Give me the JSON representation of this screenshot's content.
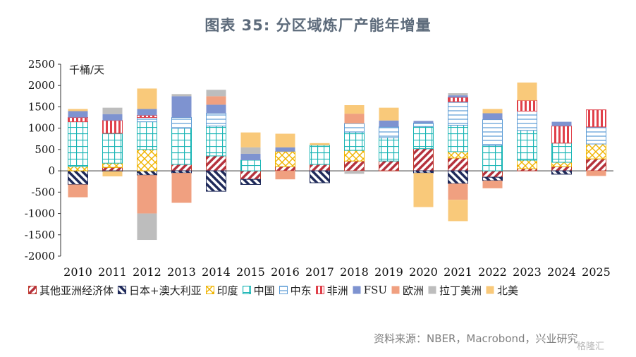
{
  "title": "图表 35: 分区域炼厂产能年增量",
  "source": "资料来源：NBER，Macrobond，兴业研究",
  "watermark": "格隆汇",
  "chart_data": {
    "type": "bar",
    "stacked": true,
    "unit": "千桶/天",
    "categories": [
      "2010",
      "2011",
      "2012",
      "2013",
      "2014",
      "2015",
      "2016",
      "2017",
      "2018",
      "2019",
      "2020",
      "2021",
      "2022",
      "2023",
      "2024",
      "2025"
    ],
    "ylim": [
      -2000,
      2500
    ],
    "yticks": [
      -2000,
      -1500,
      -1000,
      -500,
      0,
      500,
      1000,
      1500,
      2000,
      2500
    ],
    "grid": false,
    "legend_position": "bottom",
    "series": [
      {
        "name": "其他亚洲经济体",
        "color": "#c0392b",
        "pattern": "diag-red",
        "values": [
          0,
          80,
          0,
          150,
          350,
          -200,
          100,
          150,
          230,
          230,
          520,
          300,
          -150,
          50,
          100,
          280
        ]
      },
      {
        "name": "日本+澳大利亚",
        "color": "#1f2a5a",
        "pattern": "diag-navy",
        "values": [
          -320,
          -10,
          -100,
          -50,
          -480,
          -120,
          0,
          -280,
          0,
          0,
          -50,
          -300,
          -80,
          0,
          -80,
          0
        ]
      },
      {
        "name": "印度",
        "color": "#f0b400",
        "pattern": "cross-yellow",
        "values": [
          100,
          100,
          500,
          0,
          0,
          0,
          350,
          0,
          250,
          0,
          0,
          150,
          0,
          200,
          100,
          350
        ]
      },
      {
        "name": "中国",
        "color": "#19b5b5",
        "pattern": "grid-teal",
        "values": [
          1050,
          700,
          650,
          850,
          700,
          250,
          0,
          450,
          430,
          550,
          520,
          620,
          600,
          700,
          450,
          0
        ]
      },
      {
        "name": "中东",
        "color": "#5b9bd5",
        "pattern": "hlines-blue",
        "values": [
          0,
          0,
          100,
          250,
          300,
          0,
          0,
          0,
          200,
          250,
          80,
          550,
          600,
          450,
          0,
          400
        ]
      },
      {
        "name": "非洲",
        "color": "#e0404a",
        "pattern": "vlines-red",
        "values": [
          100,
          300,
          50,
          0,
          0,
          0,
          0,
          0,
          0,
          0,
          0,
          100,
          0,
          250,
          400,
          400
        ]
      },
      {
        "name": "FSU",
        "color": "#7e93d0",
        "pattern": "solid",
        "values": [
          150,
          150,
          150,
          500,
          200,
          150,
          100,
          0,
          0,
          150,
          50,
          50,
          150,
          0,
          100,
          0
        ]
      },
      {
        "name": "欧洲",
        "color": "#f0a080",
        "pattern": "solid",
        "values": [
          -300,
          0,
          -900,
          -700,
          200,
          0,
          -200,
          0,
          230,
          0,
          0,
          -380,
          -180,
          0,
          0,
          -120
        ]
      },
      {
        "name": "拉丁美洲",
        "color": "#bdbdbd",
        "pattern": "solid",
        "values": [
          0,
          150,
          -620,
          50,
          150,
          150,
          0,
          0,
          -70,
          0,
          0,
          50,
          0,
          0,
          0,
          0
        ]
      },
      {
        "name": "北美",
        "color": "#f9c97a",
        "pattern": "solid",
        "values": [
          50,
          -120,
          480,
          0,
          0,
          350,
          320,
          50,
          200,
          300,
          -800,
          -500,
          100,
          420,
          0,
          0
        ]
      }
    ]
  }
}
